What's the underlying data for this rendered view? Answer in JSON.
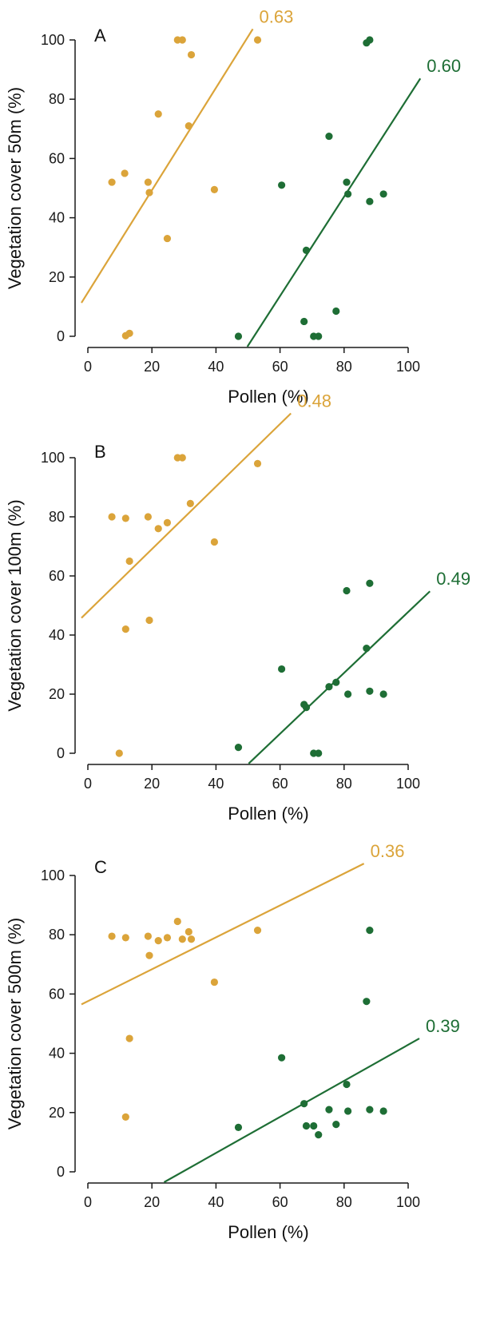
{
  "colors": {
    "yellow": "#dba43a",
    "green": "#1e6e35",
    "axis": "#1a1a1a"
  },
  "chart_data": [
    {
      "type": "scatter",
      "panel": "A",
      "xlabel": "Pollen (%)",
      "ylabel": "Vegetation cover 50m (%)",
      "xlim": [
        -2,
        100
      ],
      "ylim": [
        0,
        100
      ],
      "xticks": [
        0,
        20,
        40,
        60,
        80,
        100
      ],
      "yticks": [
        0,
        20,
        40,
        60,
        80,
        100
      ],
      "series": [
        {
          "color": "yellow",
          "r_label": "0.63",
          "fit": {
            "x": [
              -2,
              51.5
            ],
            "y": [
              11.3,
              103.7
            ]
          },
          "points": [
            [
              7.5,
              52
            ],
            [
              11.5,
              55
            ],
            [
              11.8,
              0.2
            ],
            [
              13.0,
              1
            ],
            [
              18.8,
              52
            ],
            [
              19.2,
              48.5
            ],
            [
              22.0,
              75
            ],
            [
              24.8,
              33
            ],
            [
              28.0,
              100
            ],
            [
              29.5,
              100
            ],
            [
              31.5,
              71
            ],
            [
              32.3,
              95
            ],
            [
              39.5,
              49.5
            ],
            [
              53.0,
              100
            ]
          ]
        },
        {
          "color": "green",
          "r_label": "0.60",
          "fit": {
            "x": [
              49.8,
              103.8
            ],
            "y": [
              -3.5,
              87
            ]
          },
          "points": [
            [
              47.0,
              0
            ],
            [
              60.5,
              51
            ],
            [
              67.5,
              5
            ],
            [
              68.2,
              29
            ],
            [
              70.5,
              0
            ],
            [
              72.0,
              0
            ],
            [
              75.3,
              67.5
            ],
            [
              77.5,
              8.5
            ],
            [
              80.8,
              52
            ],
            [
              81.2,
              48
            ],
            [
              87.0,
              99
            ],
            [
              88.0,
              100
            ],
            [
              88.0,
              45.5
            ],
            [
              92.3,
              48
            ]
          ]
        }
      ]
    },
    {
      "type": "scatter",
      "panel": "B",
      "xlabel": "Pollen (%)",
      "ylabel": "Vegetation cover 100m (%)",
      "xlim": [
        -2,
        100
      ],
      "ylim": [
        0,
        100
      ],
      "xticks": [
        0,
        20,
        40,
        60,
        80,
        100
      ],
      "yticks": [
        0,
        20,
        40,
        60,
        80,
        100
      ],
      "series": [
        {
          "color": "yellow",
          "r_label": "0.48",
          "fit": {
            "x": [
              -2,
              63.4
            ],
            "y": [
              45.8,
              115
            ]
          },
          "points": [
            [
              7.5,
              80
            ],
            [
              9.8,
              0
            ],
            [
              11.8,
              79.5
            ],
            [
              11.8,
              42
            ],
            [
              13.0,
              65
            ],
            [
              18.8,
              80
            ],
            [
              19.2,
              45
            ],
            [
              22.0,
              76
            ],
            [
              24.8,
              78
            ],
            [
              28.0,
              100
            ],
            [
              29.5,
              100
            ],
            [
              32.0,
              84.5
            ],
            [
              39.5,
              71.5
            ],
            [
              53.0,
              98
            ]
          ]
        },
        {
          "color": "green",
          "r_label": "0.49",
          "fit": {
            "x": [
              50.2,
              106.8
            ],
            "y": [
              -3.5,
              54.8
            ]
          },
          "points": [
            [
              47.0,
              2
            ],
            [
              60.5,
              28.5
            ],
            [
              67.5,
              16.5
            ],
            [
              68.2,
              15.5
            ],
            [
              70.5,
              0
            ],
            [
              72.0,
              0
            ],
            [
              75.3,
              22.5
            ],
            [
              77.5,
              24
            ],
            [
              80.8,
              55
            ],
            [
              81.2,
              20
            ],
            [
              87.0,
              35.5
            ],
            [
              88.0,
              57.5
            ],
            [
              88.0,
              21
            ],
            [
              92.3,
              20
            ]
          ]
        }
      ]
    },
    {
      "type": "scatter",
      "panel": "C",
      "xlabel": "Pollen (%)",
      "ylabel": "Vegetation cover 500m (%)",
      "xlim": [
        -2,
        100
      ],
      "ylim": [
        0,
        100
      ],
      "xticks": [
        0,
        20,
        40,
        60,
        80,
        100
      ],
      "yticks": [
        0,
        20,
        40,
        60,
        80,
        100
      ],
      "series": [
        {
          "color": "yellow",
          "r_label": "0.36",
          "fit": {
            "x": [
              -2,
              86.2
            ],
            "y": [
              56.5,
              104
            ]
          },
          "points": [
            [
              7.5,
              79.5
            ],
            [
              11.8,
              79
            ],
            [
              11.8,
              18.5
            ],
            [
              13.0,
              45
            ],
            [
              18.8,
              79.5
            ],
            [
              19.2,
              73
            ],
            [
              22.0,
              78
            ],
            [
              24.8,
              79
            ],
            [
              28.0,
              84.5
            ],
            [
              29.5,
              78.5
            ],
            [
              31.5,
              81
            ],
            [
              32.3,
              78.5
            ],
            [
              39.5,
              64
            ],
            [
              53.0,
              81.5
            ]
          ]
        },
        {
          "color": "green",
          "r_label": "0.39",
          "fit": {
            "x": [
              23.8,
              103.5
            ],
            "y": [
              -3.5,
              45
            ]
          },
          "points": [
            [
              47.0,
              15
            ],
            [
              60.5,
              38.5
            ],
            [
              67.5,
              23
            ],
            [
              68.2,
              15.5
            ],
            [
              70.5,
              15.5
            ],
            [
              72.0,
              12.5
            ],
            [
              75.3,
              21
            ],
            [
              77.5,
              16
            ],
            [
              80.8,
              29.5
            ],
            [
              81.2,
              20.5
            ],
            [
              87.0,
              57.5
            ],
            [
              88.0,
              81.5
            ],
            [
              88.0,
              21
            ],
            [
              92.3,
              20.5
            ]
          ]
        }
      ]
    }
  ]
}
